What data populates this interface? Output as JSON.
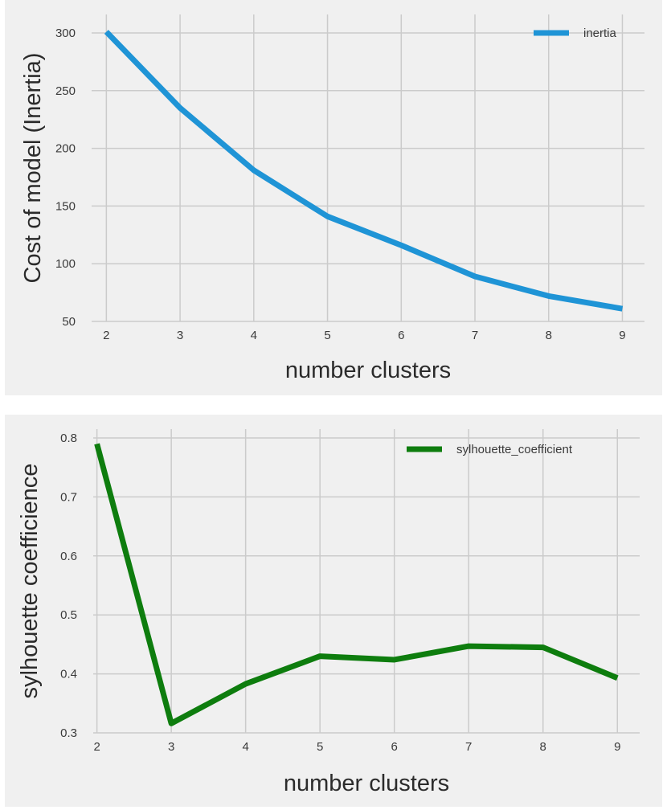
{
  "chart_data": [
    {
      "type": "line",
      "x": [
        2,
        3,
        4,
        5,
        6,
        7,
        8,
        9
      ],
      "series": [
        {
          "name": "inertia",
          "values": [
            301,
            235,
            181,
            141,
            116,
            89,
            72,
            61
          ],
          "color": "#1f94d6"
        }
      ],
      "xlabel": "number clusters",
      "ylabel": "Cost of model (Inertia)",
      "xticks": [
        2,
        3,
        4,
        5,
        6,
        7,
        8,
        9
      ],
      "yticks": [
        50,
        100,
        150,
        200,
        250,
        300
      ],
      "xlim": [
        1.8,
        9.3
      ],
      "ylim": [
        50,
        316
      ],
      "grid": true,
      "legend": "top-right",
      "background": "#f0f0f0"
    },
    {
      "type": "line",
      "x": [
        2,
        3,
        4,
        5,
        6,
        7,
        8,
        9
      ],
      "series": [
        {
          "name": "sylhouette_coefficient",
          "values": [
            0.79,
            0.316,
            0.383,
            0.43,
            0.424,
            0.447,
            0.445,
            0.393
          ],
          "color": "#0e7d0e"
        }
      ],
      "xlabel": "number clusters",
      "ylabel": "sylhouette coefficience",
      "xticks": [
        2,
        3,
        4,
        5,
        6,
        7,
        8,
        9
      ],
      "yticks": [
        0.3,
        0.4,
        0.5,
        0.6,
        0.7,
        0.8
      ],
      "xlim": [
        1.95,
        9.3
      ],
      "ylim": [
        0.3,
        0.815
      ],
      "grid": true,
      "legend": "top-right",
      "background": "#f0f0f0"
    }
  ]
}
